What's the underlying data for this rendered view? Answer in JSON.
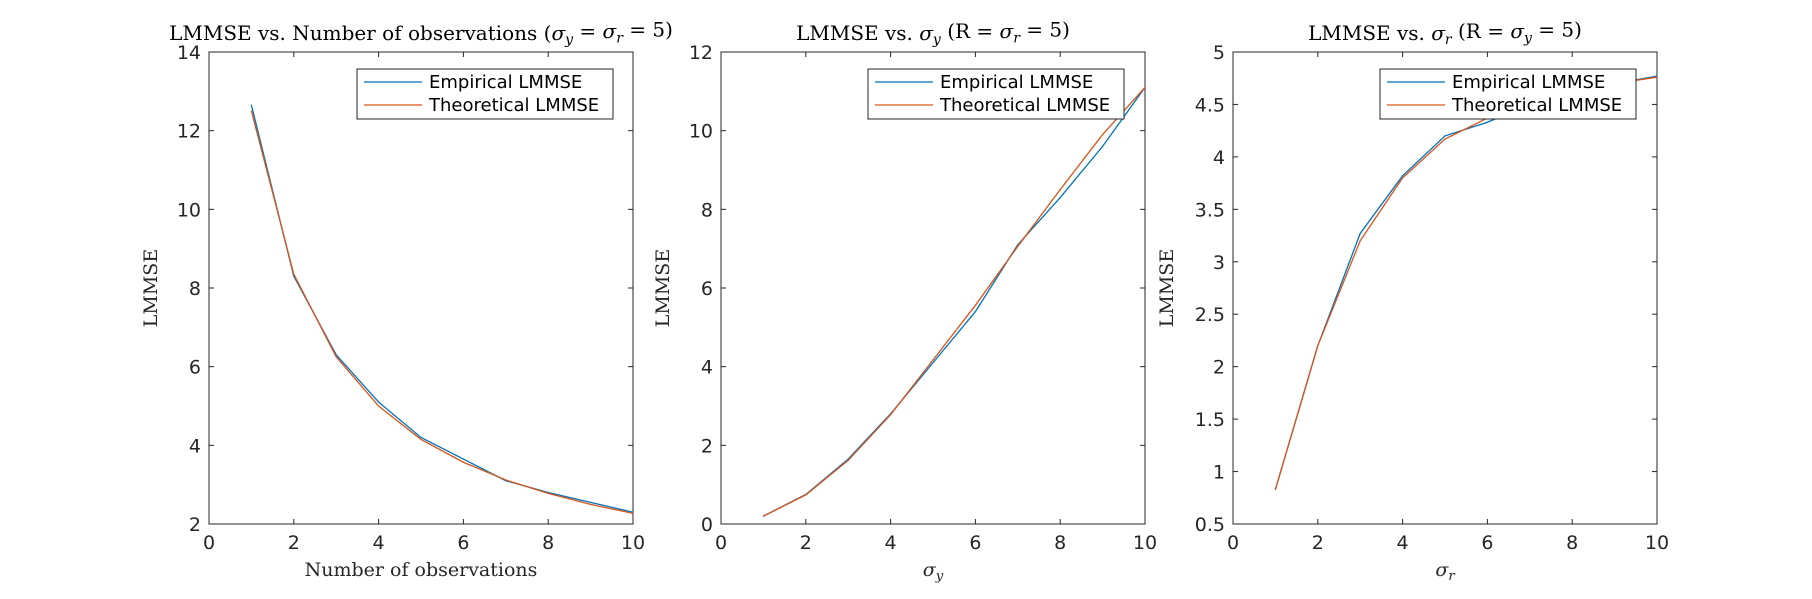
{
  "colors": {
    "empirical": "#0072BD",
    "theoretical": "#D95319"
  },
  "chart_data": [
    {
      "type": "line",
      "title": "LMMSE vs. Number of observations (σ_y = σ_r = 5)",
      "xlabel": "Number of observations",
      "ylabel": "LMMSE",
      "xlim": [
        0,
        10
      ],
      "ylim": [
        2,
        14
      ],
      "xticks": [
        0,
        2,
        4,
        6,
        8,
        10
      ],
      "yticks": [
        2,
        4,
        6,
        8,
        10,
        12,
        14
      ],
      "legend_position": "top-right",
      "x": [
        1,
        2,
        3,
        4,
        5,
        6,
        7,
        8,
        9,
        10
      ],
      "series": [
        {
          "name": "Empirical LMMSE",
          "values": [
            12.65,
            8.3,
            6.3,
            5.1,
            4.2,
            3.65,
            3.1,
            2.8,
            2.55,
            2.3
          ]
        },
        {
          "name": "Theoretical LMMSE",
          "values": [
            12.5,
            8.35,
            6.25,
            5.0,
            4.15,
            3.57,
            3.12,
            2.78,
            2.5,
            2.27
          ]
        }
      ]
    },
    {
      "type": "line",
      "title": "LMMSE vs. σ_y (R = σ_r = 5)",
      "xlabel": "σ_y",
      "ylabel": "LMMSE",
      "xlim": [
        0,
        10
      ],
      "ylim": [
        0,
        12
      ],
      "xticks": [
        0,
        2,
        4,
        6,
        8,
        10
      ],
      "yticks": [
        0,
        2,
        4,
        6,
        8,
        10,
        12
      ],
      "legend_position": "top-right",
      "x": [
        1,
        2,
        3,
        4,
        5,
        6,
        7,
        8,
        9,
        10
      ],
      "series": [
        {
          "name": "Empirical LMMSE",
          "values": [
            0.2,
            0.75,
            1.65,
            2.8,
            4.1,
            5.4,
            7.1,
            8.3,
            9.6,
            11.1
          ]
        },
        {
          "name": "Theoretical LMMSE",
          "values": [
            0.2,
            0.74,
            1.62,
            2.78,
            4.17,
            5.56,
            7.06,
            8.5,
            9.9,
            11.1
          ]
        }
      ]
    },
    {
      "type": "line",
      "title": "LMMSE vs. σ_r (R = σ_y = 5)",
      "xlabel": "σ_r",
      "ylabel": "LMMSE",
      "xlim": [
        0,
        10
      ],
      "ylim": [
        0.5,
        5
      ],
      "xticks": [
        0,
        2,
        4,
        6,
        8,
        10
      ],
      "yticks": [
        0.5,
        1,
        1.5,
        2,
        2.5,
        3,
        3.5,
        4,
        4.5,
        5
      ],
      "legend_position": "top-right",
      "x": [
        1,
        2,
        3,
        4,
        5,
        6,
        7,
        8,
        9,
        10
      ],
      "series": [
        {
          "name": "Empirical LMMSE",
          "values": [
            0.83,
            2.2,
            3.27,
            3.82,
            4.2,
            4.33,
            4.5,
            4.62,
            4.7,
            4.77
          ]
        },
        {
          "name": "Theoretical LMMSE",
          "values": [
            0.83,
            2.2,
            3.2,
            3.8,
            4.17,
            4.37,
            4.52,
            4.63,
            4.7,
            4.76
          ]
        }
      ]
    }
  ]
}
